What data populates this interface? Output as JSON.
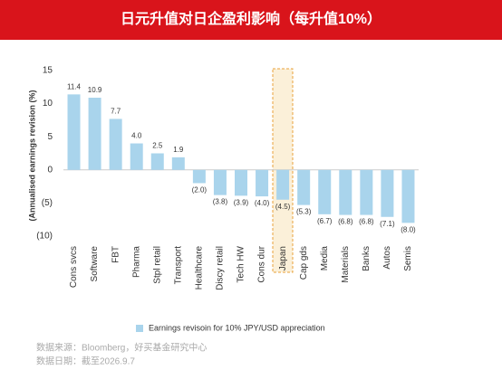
{
  "chart_data": {
    "type": "bar",
    "title": "日元升值对日企盈利影响（每升值10%）",
    "ylabel": "(Annualised earnings revision (%)",
    "categories": [
      "Cons svcs",
      "Software",
      "FBT",
      "Pharma",
      "Stpl retail",
      "Transport",
      "Healthcare",
      "Discy retail",
      "Tech HW",
      "Cons dur",
      "Japan",
      "Cap gds",
      "Media",
      "Materials",
      "Banks",
      "Autos",
      "Semis"
    ],
    "series": [
      {
        "name": "Earnings revisoin for 10% JPY/USD appreciation",
        "color": "#a9d4ec",
        "values": [
          11.4,
          10.9,
          7.7,
          4.0,
          2.5,
          1.9,
          -2.0,
          -3.8,
          -3.9,
          -4.0,
          -4.5,
          -5.3,
          -6.7,
          -6.8,
          -6.8,
          -7.1,
          -8.0
        ],
        "value_labels": [
          "11.4",
          "10.9",
          "7.7",
          "4.0",
          "2.5",
          "1.9",
          "(2.0)",
          "(3.8)",
          "(3.9)",
          "(4.0)",
          "(4.5)",
          "(5.3)",
          "(6.7)",
          "(6.8)",
          "(6.8)",
          "(7.1)",
          "(8.0)"
        ]
      }
    ],
    "ylim": [
      -10,
      15
    ],
    "yticks": [
      15,
      10,
      5,
      0,
      {
        "value": -5,
        "label": "(5)"
      },
      {
        "value": -10,
        "label": "(10)"
      }
    ],
    "legend": "bottom"
  },
  "footer": {
    "source": "数据来源：Bloomberg，好买基金研究中心",
    "date": "数据日期：截至2026.9.7"
  }
}
